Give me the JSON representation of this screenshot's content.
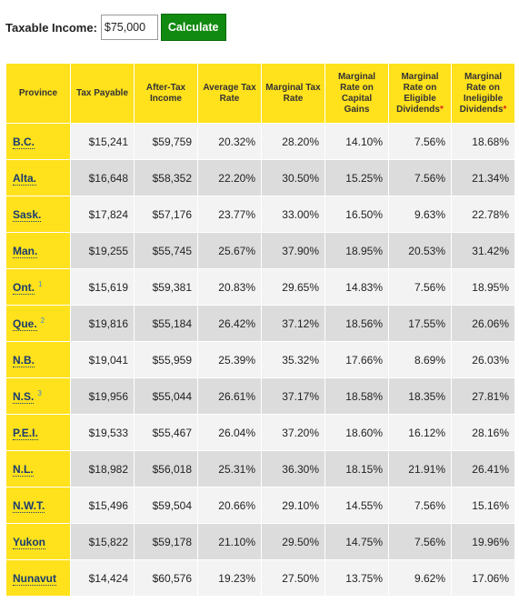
{
  "form": {
    "label": "Taxable Income:",
    "income_value": "$75,000",
    "button_label": "Calculate"
  },
  "table": {
    "headers": [
      {
        "text": "Province",
        "star": false
      },
      {
        "text": "Tax Payable",
        "star": false
      },
      {
        "text": "After-Tax Income",
        "star": false
      },
      {
        "text": "Average Tax Rate",
        "star": false
      },
      {
        "text": "Marginal Tax Rate",
        "star": false
      },
      {
        "text": "Marginal Rate on Capital Gains",
        "star": false
      },
      {
        "text": "Marginal Rate on Eligible Dividends",
        "star": true
      },
      {
        "text": "Marginal Rate on Ineligible Dividends",
        "star": true
      }
    ],
    "rows": [
      {
        "province": "B.C.",
        "note": "",
        "values": [
          "$15,241",
          "$59,759",
          "20.32%",
          "28.20%",
          "14.10%",
          "7.56%",
          "18.68%"
        ]
      },
      {
        "province": "Alta.",
        "note": "",
        "values": [
          "$16,648",
          "$58,352",
          "22.20%",
          "30.50%",
          "15.25%",
          "7.56%",
          "21.34%"
        ]
      },
      {
        "province": "Sask.",
        "note": "",
        "values": [
          "$17,824",
          "$57,176",
          "23.77%",
          "33.00%",
          "16.50%",
          "9.63%",
          "22.78%"
        ]
      },
      {
        "province": "Man.",
        "note": "",
        "values": [
          "$19,255",
          "$55,745",
          "25.67%",
          "37.90%",
          "18.95%",
          "20.53%",
          "31.42%"
        ]
      },
      {
        "province": "Ont.",
        "note": "1",
        "values": [
          "$15,619",
          "$59,381",
          "20.83%",
          "29.65%",
          "14.83%",
          "7.56%",
          "18.95%"
        ]
      },
      {
        "province": "Que.",
        "note": "2",
        "values": [
          "$19,816",
          "$55,184",
          "26.42%",
          "37.12%",
          "18.56%",
          "17.55%",
          "26.06%"
        ]
      },
      {
        "province": "N.B.",
        "note": "",
        "values": [
          "$19,041",
          "$55,959",
          "25.39%",
          "35.32%",
          "17.66%",
          "8.69%",
          "26.03%"
        ]
      },
      {
        "province": "N.S.",
        "note": "3",
        "values": [
          "$19,956",
          "$55,044",
          "26.61%",
          "37.17%",
          "18.58%",
          "18.35%",
          "27.81%"
        ]
      },
      {
        "province": "P.E.I.",
        "note": "",
        "values": [
          "$19,533",
          "$55,467",
          "26.04%",
          "37.20%",
          "18.60%",
          "16.12%",
          "28.16%"
        ]
      },
      {
        "province": "N.L.",
        "note": "",
        "values": [
          "$18,982",
          "$56,018",
          "25.31%",
          "36.30%",
          "18.15%",
          "21.91%",
          "26.41%"
        ]
      },
      {
        "province": "N.W.T.",
        "note": "",
        "values": [
          "$15,496",
          "$59,504",
          "20.66%",
          "29.10%",
          "14.55%",
          "7.56%",
          "15.16%"
        ]
      },
      {
        "province": "Yukon",
        "note": "",
        "values": [
          "$15,822",
          "$59,178",
          "21.10%",
          "29.50%",
          "14.75%",
          "7.56%",
          "19.96%"
        ]
      },
      {
        "province": "Nunavut",
        "note": "",
        "values": [
          "$14,424",
          "$60,576",
          "19.23%",
          "27.50%",
          "13.75%",
          "9.62%",
          "17.06%"
        ]
      }
    ]
  },
  "colors": {
    "header_yellow": "#ffe11c",
    "button_green": "#108a10",
    "row_light": "#f3f3f3",
    "row_dark": "#dcdcdc",
    "link_blue": "#1a3d6e",
    "asterisk_red": "#e02020"
  }
}
